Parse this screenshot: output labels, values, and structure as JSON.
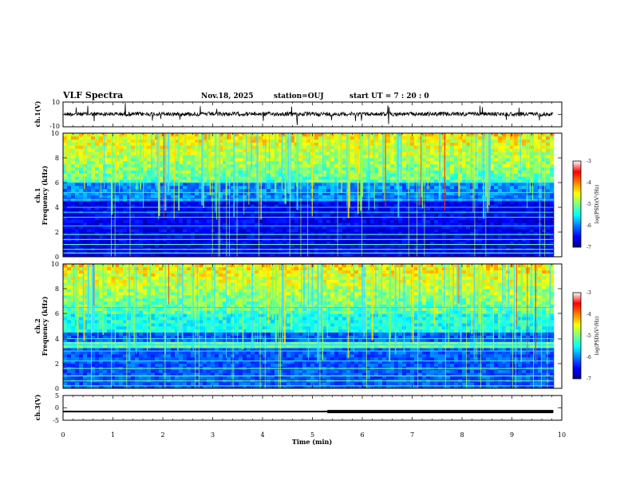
{
  "header": {
    "title": "VLF Spectra",
    "date": "Nov.18, 2025",
    "station": "station=OUJ",
    "start": "start  UT  =    7  : 20 : 0"
  },
  "chart_data": [
    {
      "type": "line",
      "id": "ch1-waveform",
      "ylabel": "ch.1(V)",
      "ylim": [
        -10,
        10
      ],
      "yticks": [
        "10",
        "-10"
      ],
      "xlim": [
        0,
        9.83
      ]
    },
    {
      "type": "heatmap",
      "id": "ch1-spectrogram",
      "ylabel_top": "ch.1",
      "ylabel": "Frequency (kHz)",
      "ylim": [
        0,
        10
      ],
      "yticks": [
        "0",
        "2",
        "4",
        "6",
        "8",
        "10"
      ],
      "colorbar": {
        "label": "log(PSD)(V²/Hz)",
        "ticks": [
          "-3",
          "-4",
          "-5",
          "-6",
          "-7"
        ],
        "range": [
          -7,
          -3
        ]
      }
    },
    {
      "type": "heatmap",
      "id": "ch2-spectrogram",
      "ylabel_top": "ch.2",
      "ylabel": "Frequency (kHz)",
      "ylim": [
        0,
        10
      ],
      "yticks": [
        "0",
        "2",
        "4",
        "6",
        "8",
        "10"
      ],
      "colorbar": {
        "label": "log(PSD)(V²/Hz)",
        "ticks": [
          "-3",
          "-4",
          "-5",
          "-6",
          "-7"
        ],
        "range": [
          -7,
          -3
        ]
      }
    },
    {
      "type": "line",
      "id": "ch3-signal",
      "ylabel": "ch.3(V)",
      "ylim": [
        -5,
        5
      ],
      "yticks": [
        "5",
        "0",
        "-5"
      ],
      "x": [
        0,
        5.3,
        5.3,
        9.83
      ],
      "y": [
        -1.5,
        -1.5,
        -1.5,
        -1.5
      ],
      "x_label": "Time (min)",
      "x_range": [
        0,
        10
      ],
      "x_ticks": [
        "0",
        "1",
        "2",
        "3",
        "4",
        "5",
        "6",
        "7",
        "8",
        "9",
        "10"
      ]
    }
  ]
}
